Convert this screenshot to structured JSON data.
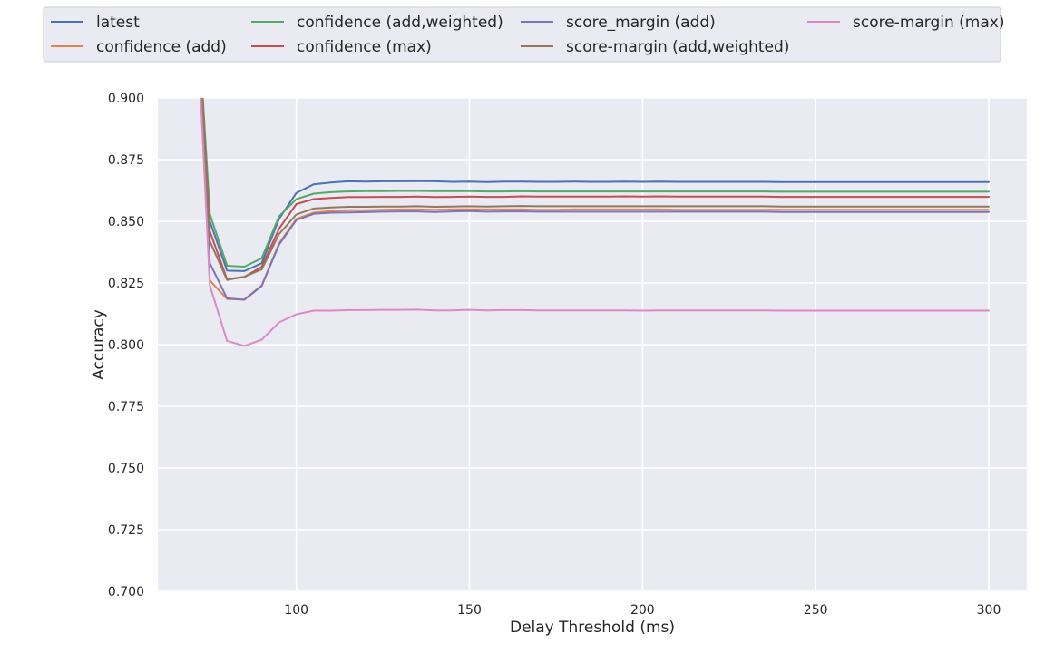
{
  "chart_data": {
    "type": "line",
    "xlabel": "Delay Threshold (ms)",
    "ylabel": "Accuracy",
    "xlim": [
      60,
      311
    ],
    "ylim": [
      0.7,
      0.9
    ],
    "xticks": [
      100,
      150,
      200,
      250,
      300
    ],
    "yticks": [
      0.7,
      0.725,
      0.75,
      0.775,
      0.8,
      0.825,
      0.85,
      0.875,
      0.9
    ],
    "xtick_labels": [
      "100",
      "150",
      "200",
      "250",
      "300"
    ],
    "ytick_labels": [
      "0.700",
      "0.725",
      "0.750",
      "0.775",
      "0.800",
      "0.825",
      "0.850",
      "0.875",
      "0.900"
    ],
    "grid": true,
    "legend_position": "top, above plot, 4 columns",
    "background": "#eaeaf2",
    "series": [
      {
        "name": "latest",
        "color": "#4c72b0",
        "x": [
          70,
          75,
          80,
          85,
          90,
          95,
          100,
          105,
          110,
          115,
          120,
          125,
          130,
          135,
          140,
          145,
          150,
          155,
          160,
          165,
          170,
          175,
          180,
          185,
          190,
          195,
          200,
          205,
          210,
          215,
          220,
          225,
          230,
          235,
          240,
          245,
          250,
          255,
          260,
          265,
          270,
          275,
          280,
          285,
          290,
          295,
          300
        ],
        "y": [
          0.97,
          0.85,
          0.83,
          0.8298,
          0.833,
          0.851,
          0.8615,
          0.865,
          0.8657,
          0.8662,
          0.8661,
          0.8662,
          0.8662,
          0.8663,
          0.8662,
          0.866,
          0.8661,
          0.8659,
          0.8661,
          0.8661,
          0.866,
          0.866,
          0.8661,
          0.866,
          0.866,
          0.8661,
          0.866,
          0.8661,
          0.866,
          0.866,
          0.866,
          0.866,
          0.866,
          0.866,
          0.8659,
          0.8659,
          0.8659,
          0.8659,
          0.8659,
          0.8659,
          0.8659,
          0.8659,
          0.8659,
          0.8659,
          0.8659,
          0.8659,
          0.8659
        ]
      },
      {
        "name": "confidence (add)",
        "color": "#dd8452",
        "x": [
          70,
          75,
          80,
          85,
          90,
          95,
          100,
          105,
          110,
          115,
          120,
          125,
          130,
          135,
          140,
          145,
          150,
          155,
          160,
          165,
          170,
          175,
          180,
          185,
          190,
          195,
          200,
          205,
          210,
          215,
          220,
          225,
          230,
          235,
          240,
          245,
          250,
          255,
          260,
          265,
          270,
          275,
          280,
          285,
          290,
          295,
          300
        ],
        "y": [
          0.97,
          0.826,
          0.8185,
          0.8183,
          0.824,
          0.841,
          0.851,
          0.8535,
          0.8542,
          0.8545,
          0.8545,
          0.8547,
          0.8548,
          0.8548,
          0.8547,
          0.8548,
          0.8549,
          0.8548,
          0.8548,
          0.8548,
          0.8547,
          0.8547,
          0.8548,
          0.8548,
          0.8548,
          0.8548,
          0.8548,
          0.8548,
          0.8547,
          0.8547,
          0.8547,
          0.8547,
          0.8547,
          0.8547,
          0.8547,
          0.8547,
          0.8547,
          0.8547,
          0.8547,
          0.8547,
          0.8547,
          0.8547,
          0.8547,
          0.8547,
          0.8547,
          0.8547,
          0.8547
        ]
      },
      {
        "name": "confidence (add,weighted)",
        "color": "#55a868",
        "x": [
          70,
          75,
          80,
          85,
          90,
          95,
          100,
          105,
          110,
          115,
          120,
          125,
          130,
          135,
          140,
          145,
          150,
          155,
          160,
          165,
          170,
          175,
          180,
          185,
          190,
          195,
          200,
          205,
          210,
          215,
          220,
          225,
          230,
          235,
          240,
          245,
          250,
          255,
          260,
          265,
          270,
          275,
          280,
          285,
          290,
          295,
          300
        ],
        "y": [
          0.97,
          0.853,
          0.832,
          0.8316,
          0.835,
          0.852,
          0.859,
          0.8612,
          0.8618,
          0.8621,
          0.8622,
          0.8622,
          0.8623,
          0.8623,
          0.8622,
          0.8622,
          0.8622,
          0.8621,
          0.8621,
          0.8622,
          0.8621,
          0.8621,
          0.8621,
          0.8621,
          0.8621,
          0.8621,
          0.8621,
          0.8621,
          0.8621,
          0.8621,
          0.8621,
          0.8621,
          0.8621,
          0.8621,
          0.862,
          0.862,
          0.862,
          0.862,
          0.862,
          0.862,
          0.862,
          0.862,
          0.862,
          0.862,
          0.862,
          0.862,
          0.862
        ]
      },
      {
        "name": "confidence (max)",
        "color": "#c44e52",
        "x": [
          70,
          75,
          80,
          85,
          90,
          95,
          100,
          105,
          110,
          115,
          120,
          125,
          130,
          135,
          140,
          145,
          150,
          155,
          160,
          165,
          170,
          175,
          180,
          185,
          190,
          195,
          200,
          205,
          210,
          215,
          220,
          225,
          230,
          235,
          240,
          245,
          250,
          255,
          260,
          265,
          270,
          275,
          280,
          285,
          290,
          295,
          300
        ],
        "y": [
          0.97,
          0.846,
          0.8265,
          0.8275,
          0.8315,
          0.847,
          0.857,
          0.859,
          0.8595,
          0.8598,
          0.8598,
          0.8599,
          0.8599,
          0.86,
          0.8598,
          0.8599,
          0.86,
          0.8599,
          0.8599,
          0.8601,
          0.86,
          0.86,
          0.86,
          0.86,
          0.86,
          0.8601,
          0.86,
          0.8601,
          0.86,
          0.86,
          0.86,
          0.86,
          0.86,
          0.86,
          0.8599,
          0.8599,
          0.8599,
          0.8599,
          0.8599,
          0.8599,
          0.8599,
          0.8599,
          0.8599,
          0.8599,
          0.8599,
          0.8599,
          0.8599
        ]
      },
      {
        "name": "score_margin (add)",
        "color": "#8172b3",
        "x": [
          70,
          75,
          80,
          85,
          90,
          95,
          100,
          105,
          110,
          115,
          120,
          125,
          130,
          135,
          140,
          145,
          150,
          155,
          160,
          165,
          170,
          175,
          180,
          185,
          190,
          195,
          200,
          205,
          210,
          215,
          220,
          225,
          230,
          235,
          240,
          245,
          250,
          255,
          260,
          265,
          270,
          275,
          280,
          285,
          290,
          295,
          300
        ],
        "y": [
          0.97,
          0.833,
          0.8188,
          0.8182,
          0.8238,
          0.8405,
          0.8505,
          0.853,
          0.8535,
          0.8536,
          0.8537,
          0.8539,
          0.854,
          0.854,
          0.8538,
          0.854,
          0.8541,
          0.8539,
          0.854,
          0.854,
          0.8539,
          0.8539,
          0.8539,
          0.8539,
          0.8539,
          0.8539,
          0.8539,
          0.8539,
          0.8539,
          0.8539,
          0.8539,
          0.8539,
          0.8539,
          0.8539,
          0.8538,
          0.8538,
          0.8538,
          0.8538,
          0.8538,
          0.8538,
          0.8538,
          0.8538,
          0.8538,
          0.8538,
          0.8538,
          0.8538,
          0.8538
        ]
      },
      {
        "name": "score-margin (add,weighted)",
        "color": "#937860",
        "x": [
          70,
          75,
          80,
          85,
          90,
          95,
          100,
          105,
          110,
          115,
          120,
          125,
          130,
          135,
          140,
          145,
          150,
          155,
          160,
          165,
          170,
          175,
          180,
          185,
          190,
          195,
          200,
          205,
          210,
          215,
          220,
          225,
          230,
          235,
          240,
          245,
          250,
          255,
          260,
          265,
          270,
          275,
          280,
          285,
          290,
          295,
          300
        ],
        "y": [
          0.97,
          0.842,
          0.8262,
          0.8275,
          0.8305,
          0.8448,
          0.8528,
          0.8552,
          0.8556,
          0.8559,
          0.8559,
          0.856,
          0.856,
          0.8561,
          0.8559,
          0.856,
          0.8561,
          0.856,
          0.8561,
          0.8562,
          0.8561,
          0.8561,
          0.8561,
          0.8561,
          0.8561,
          0.8561,
          0.8561,
          0.8561,
          0.8561,
          0.8561,
          0.8561,
          0.8561,
          0.8561,
          0.8561,
          0.856,
          0.856,
          0.856,
          0.856,
          0.856,
          0.856,
          0.856,
          0.856,
          0.856,
          0.856,
          0.856,
          0.856,
          0.856
        ]
      },
      {
        "name": "score-margin (max)",
        "color": "#da8bc3",
        "x": [
          70,
          75,
          80,
          85,
          90,
          95,
          100,
          105,
          110,
          115,
          120,
          125,
          130,
          135,
          140,
          145,
          150,
          155,
          160,
          165,
          170,
          175,
          180,
          185,
          190,
          195,
          200,
          205,
          210,
          215,
          220,
          225,
          230,
          235,
          240,
          245,
          250,
          255,
          260,
          265,
          270,
          275,
          280,
          285,
          290,
          295,
          300
        ],
        "y": [
          0.97,
          0.824,
          0.8015,
          0.7995,
          0.802,
          0.809,
          0.8123,
          0.8138,
          0.8138,
          0.814,
          0.814,
          0.8141,
          0.8141,
          0.8142,
          0.8139,
          0.8139,
          0.8141,
          0.8139,
          0.814,
          0.814,
          0.8139,
          0.8139,
          0.8139,
          0.8139,
          0.8139,
          0.8139,
          0.8138,
          0.8139,
          0.8139,
          0.8139,
          0.8139,
          0.8139,
          0.8139,
          0.8139,
          0.8138,
          0.8138,
          0.8138,
          0.8138,
          0.8138,
          0.8138,
          0.8138,
          0.8138,
          0.8138,
          0.8138,
          0.8138,
          0.8138,
          0.8138
        ]
      }
    ]
  }
}
